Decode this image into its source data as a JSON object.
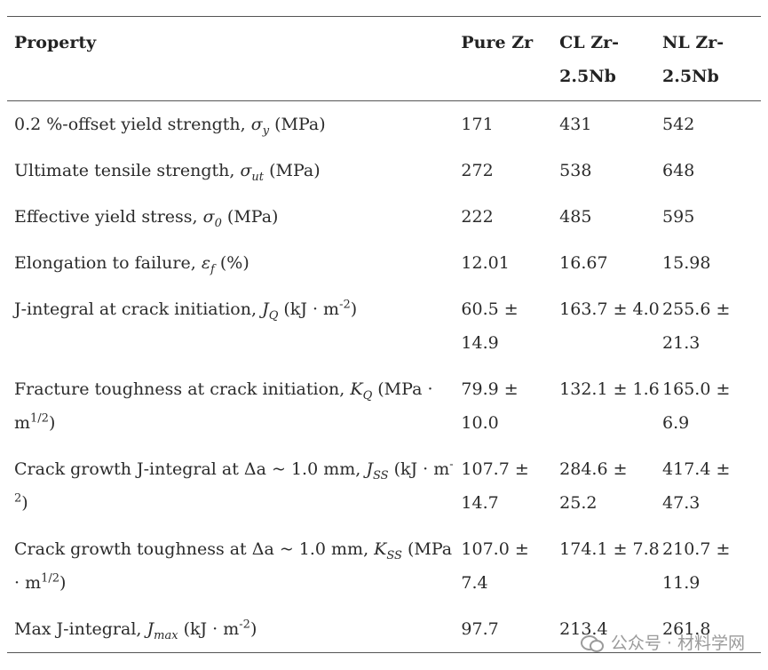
{
  "table": {
    "headers": [
      "Property",
      "Pure Zr",
      "CL Zr-2.5Nb",
      "NL Zr-2.5Nb"
    ],
    "rows": [
      {
        "label_pre": "0.2 %-offset yield strength, ",
        "sym": "σ",
        "sub": "y",
        "sup": "",
        "label_post": " (MPa)",
        "values": [
          "171",
          "431",
          "542"
        ]
      },
      {
        "label_pre": "Ultimate tensile strength, ",
        "sym": "σ",
        "sub": "ut",
        "sup": "",
        "label_post": " (MPa)",
        "values": [
          "272",
          "538",
          "648"
        ]
      },
      {
        "label_pre": "Effective yield stress, ",
        "sym": "σ",
        "sub": "0",
        "sup": "",
        "label_post": " (MPa)",
        "values": [
          "222",
          "485",
          "595"
        ]
      },
      {
        "label_pre": "Elongation to failure, ",
        "sym": "ε",
        "sub": "f",
        "sup": "",
        "label_post": " (%)",
        "values": [
          "12.01",
          "16.67",
          "15.98"
        ]
      },
      {
        "label_pre": "J-integral at crack initiation, ",
        "sym": "J",
        "sub": "Q",
        "sup": "-2",
        "label_post": " (kJ · m",
        "values": [
          "60.5 ± 14.9",
          "163.7 ± 4.0",
          "255.6 ± 21.3"
        ]
      },
      {
        "label_pre": "Fracture toughness at crack initiation, ",
        "sym": "K",
        "sub": "Q",
        "sup": "1/2",
        "label_post": " (MPa · m",
        "values": [
          "79.9 ± 10.0",
          "132.1 ± 1.6",
          "165.0 ± 6.9"
        ]
      },
      {
        "label_pre": "Crack growth J-integral at Δa ~ 1.0 mm, ",
        "sym": "J",
        "sub": "SS",
        "sup": "-2",
        "label_post": " (kJ · m",
        "values": [
          "107.7 ± 14.7",
          "284.6 ± 25.2",
          "417.4 ± 47.3"
        ]
      },
      {
        "label_pre": "Crack growth toughness at Δa ~ 1.0 mm, ",
        "sym": "K",
        "sub": "SS",
        "sup": "1/2",
        "label_post": " (MPa · m",
        "values": [
          "107.0 ± 7.4",
          "174.1 ± 7.8",
          "210.7 ± 11.9"
        ]
      },
      {
        "label_pre": "Max J-integral, ",
        "sym": "J",
        "sub": "max",
        "sup": "-2",
        "label_post": " (kJ · m",
        "values": [
          "97.7",
          "213.4",
          "261.8"
        ]
      }
    ],
    "close_paren": ")"
  },
  "watermark": {
    "text": "公众号 · 材料学网",
    "icon": "wechat-icon"
  }
}
